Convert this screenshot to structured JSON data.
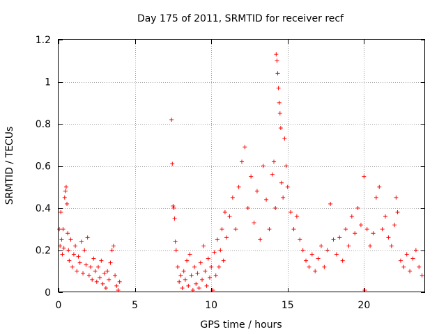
{
  "chart_data": {
    "type": "scatter",
    "title": "Day 175 of 2011, SRMTID for receiver recf",
    "xlabel": "GPS time / hours",
    "ylabel": "SRMTID / TECUs",
    "xlim": [
      0,
      24
    ],
    "ylim": [
      0,
      1.2
    ],
    "x_ticks": [
      0,
      5,
      10,
      15,
      20
    ],
    "x_tick_labels": [
      "0",
      "5",
      "10",
      "15",
      "20"
    ],
    "y_ticks": [
      0,
      0.2,
      0.4,
      0.6,
      0.8,
      1.0,
      1.2
    ],
    "y_tick_labels": [
      "0",
      "0.2",
      "0.4",
      "0.6",
      "0.8",
      "1",
      "1.2"
    ],
    "grid": true,
    "marker": "+",
    "color": "#ff0000",
    "series": [
      {
        "name": "SRMTID recf",
        "points": [
          [
            0.05,
            0.3
          ],
          [
            0.1,
            0.22
          ],
          [
            0.15,
            0.38
          ],
          [
            0.2,
            0.25
          ],
          [
            0.25,
            0.18
          ],
          [
            0.3,
            0.3
          ],
          [
            0.35,
            0.21
          ],
          [
            0.4,
            0.45
          ],
          [
            0.45,
            0.48
          ],
          [
            0.5,
            0.5
          ],
          [
            0.55,
            0.42
          ],
          [
            0.6,
            0.28
          ],
          [
            0.65,
            0.2
          ],
          [
            0.7,
            0.15
          ],
          [
            0.8,
            0.25
          ],
          [
            0.9,
            0.12
          ],
          [
            1.0,
            0.18
          ],
          [
            1.1,
            0.22
          ],
          [
            1.2,
            0.1
          ],
          [
            1.3,
            0.17
          ],
          [
            1.4,
            0.14
          ],
          [
            1.5,
            0.24
          ],
          [
            1.6,
            0.09
          ],
          [
            1.7,
            0.2
          ],
          [
            1.8,
            0.13
          ],
          [
            1.9,
            0.26
          ],
          [
            2.0,
            0.08
          ],
          [
            2.1,
            0.12
          ],
          [
            2.2,
            0.06
          ],
          [
            2.3,
            0.16
          ],
          [
            2.4,
            0.1
          ],
          [
            2.5,
            0.05
          ],
          [
            2.6,
            0.12
          ],
          [
            2.7,
            0.07
          ],
          [
            2.8,
            0.15
          ],
          [
            2.9,
            0.04
          ],
          [
            3.0,
            0.09
          ],
          [
            3.1,
            0.02
          ],
          [
            3.2,
            0.1
          ],
          [
            3.3,
            0.06
          ],
          [
            3.4,
            0.14
          ],
          [
            3.5,
            0.2
          ],
          [
            3.6,
            0.22
          ],
          [
            3.7,
            0.08
          ],
          [
            3.8,
            0.03
          ],
          [
            3.9,
            0.01
          ],
          [
            4.0,
            0.05
          ],
          [
            7.4,
            0.82
          ],
          [
            7.45,
            0.61
          ],
          [
            7.5,
            0.41
          ],
          [
            7.55,
            0.4
          ],
          [
            7.6,
            0.35
          ],
          [
            7.65,
            0.24
          ],
          [
            7.7,
            0.2
          ],
          [
            7.8,
            0.12
          ],
          [
            7.9,
            0.05
          ],
          [
            8.0,
            0.08
          ],
          [
            8.1,
            0.02
          ],
          [
            8.2,
            0.1
          ],
          [
            8.3,
            0.06
          ],
          [
            8.4,
            0.15
          ],
          [
            8.5,
            0.03
          ],
          [
            8.6,
            0.18
          ],
          [
            8.7,
            0.08
          ],
          [
            8.8,
            0.01
          ],
          [
            8.9,
            0.12
          ],
          [
            9.0,
            0.04
          ],
          [
            9.1,
            0.09
          ],
          [
            9.2,
            0.02
          ],
          [
            9.3,
            0.14
          ],
          [
            9.4,
            0.06
          ],
          [
            9.5,
            0.22
          ],
          [
            9.6,
            0.1
          ],
          [
            9.7,
            0.03
          ],
          [
            9.8,
            0.16
          ],
          [
            9.9,
            0.07
          ],
          [
            10.0,
            0.12
          ],
          [
            10.1,
            0.01
          ],
          [
            10.2,
            0.19
          ],
          [
            10.3,
            0.08
          ],
          [
            10.4,
            0.25
          ],
          [
            10.5,
            0.12
          ],
          [
            10.6,
            0.2
          ],
          [
            10.7,
            0.3
          ],
          [
            10.8,
            0.15
          ],
          [
            10.9,
            0.38
          ],
          [
            11.0,
            0.26
          ],
          [
            11.2,
            0.36
          ],
          [
            11.4,
            0.45
          ],
          [
            11.6,
            0.3
          ],
          [
            11.8,
            0.5
          ],
          [
            12.0,
            0.62
          ],
          [
            12.2,
            0.69
          ],
          [
            12.4,
            0.4
          ],
          [
            12.6,
            0.55
          ],
          [
            12.8,
            0.33
          ],
          [
            13.0,
            0.48
          ],
          [
            13.2,
            0.25
          ],
          [
            13.4,
            0.6
          ],
          [
            13.6,
            0.44
          ],
          [
            13.8,
            0.3
          ],
          [
            14.0,
            0.56
          ],
          [
            14.1,
            0.62
          ],
          [
            14.2,
            0.4
          ],
          [
            14.25,
            1.13
          ],
          [
            14.3,
            1.1
          ],
          [
            14.35,
            1.04
          ],
          [
            14.4,
            0.97
          ],
          [
            14.45,
            0.9
          ],
          [
            14.5,
            0.85
          ],
          [
            14.55,
            0.78
          ],
          [
            14.6,
            0.52
          ],
          [
            14.7,
            0.45
          ],
          [
            14.8,
            0.73
          ],
          [
            14.9,
            0.6
          ],
          [
            15.0,
            0.5
          ],
          [
            15.2,
            0.38
          ],
          [
            15.4,
            0.3
          ],
          [
            15.6,
            0.36
          ],
          [
            15.8,
            0.25
          ],
          [
            16.0,
            0.2
          ],
          [
            16.2,
            0.15
          ],
          [
            16.4,
            0.12
          ],
          [
            16.6,
            0.18
          ],
          [
            16.8,
            0.1
          ],
          [
            17.0,
            0.16
          ],
          [
            17.2,
            0.22
          ],
          [
            17.4,
            0.12
          ],
          [
            17.6,
            0.2
          ],
          [
            17.8,
            0.42
          ],
          [
            18.0,
            0.25
          ],
          [
            18.2,
            0.18
          ],
          [
            18.4,
            0.26
          ],
          [
            18.6,
            0.15
          ],
          [
            18.8,
            0.3
          ],
          [
            19.0,
            0.22
          ],
          [
            19.2,
            0.36
          ],
          [
            19.4,
            0.28
          ],
          [
            19.6,
            0.4
          ],
          [
            19.8,
            0.32
          ],
          [
            20.0,
            0.55
          ],
          [
            20.05,
            0.01
          ],
          [
            20.2,
            0.3
          ],
          [
            20.4,
            0.22
          ],
          [
            20.6,
            0.28
          ],
          [
            20.8,
            0.45
          ],
          [
            21.0,
            0.5
          ],
          [
            21.2,
            0.3
          ],
          [
            21.4,
            0.36
          ],
          [
            21.6,
            0.26
          ],
          [
            21.8,
            0.22
          ],
          [
            22.0,
            0.32
          ],
          [
            22.1,
            0.45
          ],
          [
            22.2,
            0.38
          ],
          [
            22.4,
            0.15
          ],
          [
            22.6,
            0.12
          ],
          [
            22.8,
            0.18
          ],
          [
            23.0,
            0.1
          ],
          [
            23.2,
            0.16
          ],
          [
            23.4,
            0.2
          ],
          [
            23.6,
            0.12
          ],
          [
            23.8,
            0.08
          ]
        ]
      }
    ]
  }
}
